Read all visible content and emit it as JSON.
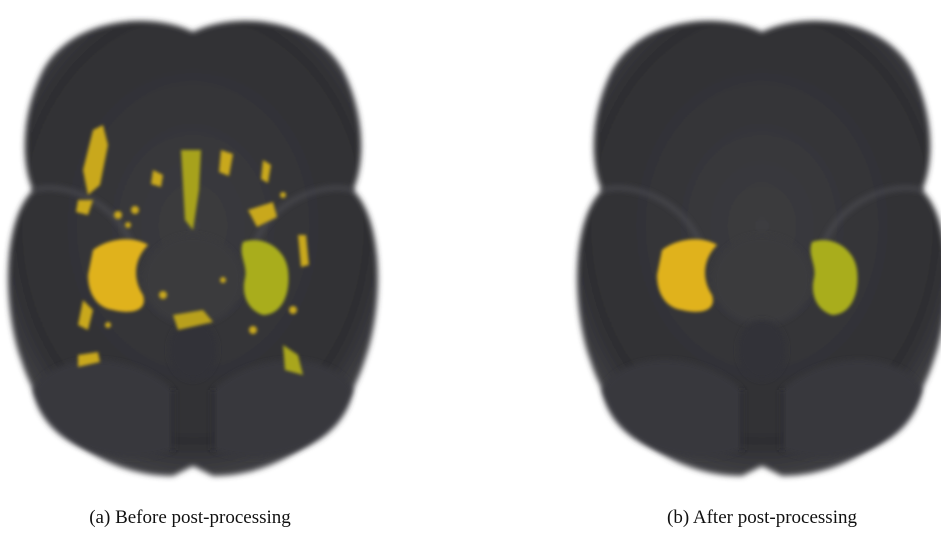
{
  "figure": {
    "panels": [
      {
        "label": "(a)",
        "caption": "Before post-processing"
      },
      {
        "label": "(b)",
        "caption": "After post-processing"
      }
    ]
  }
}
